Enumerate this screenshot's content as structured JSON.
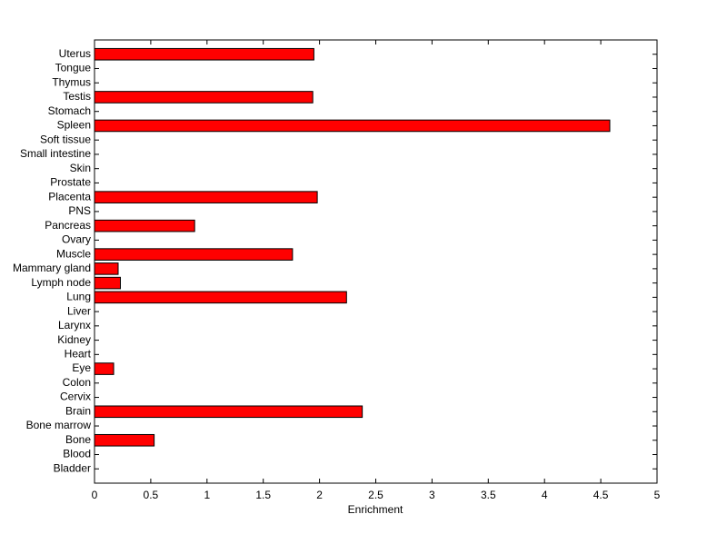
{
  "chart_data": {
    "type": "bar",
    "orientation": "horizontal",
    "xlabel": "Enrichment",
    "categories": [
      "Bladder",
      "Blood",
      "Bone",
      "Bone marrow",
      "Brain",
      "Cervix",
      "Colon",
      "Eye",
      "Heart",
      "Kidney",
      "Larynx",
      "Liver",
      "Lung",
      "Lymph node",
      "Mammary gland",
      "Muscle",
      "Ovary",
      "Pancreas",
      "PNS",
      "Placenta",
      "Prostate",
      "Skin",
      "Small intestine",
      "Soft tissue",
      "Spleen",
      "Stomach",
      "Testis",
      "Thymus",
      "Tongue",
      "Uterus"
    ],
    "values": [
      0,
      0,
      0.53,
      0,
      2.38,
      0,
      0,
      0.17,
      0,
      0,
      0,
      0,
      2.24,
      0.23,
      0.21,
      1.76,
      0,
      0.89,
      0,
      1.98,
      0,
      0,
      0,
      0,
      4.58,
      0,
      1.94,
      0,
      0,
      1.95
    ],
    "color": "#ff0000",
    "xlim": [
      0,
      5
    ],
    "xticks": [
      0,
      0.5,
      1,
      1.5,
      2,
      2.5,
      3,
      3.5,
      4,
      4.5,
      5
    ],
    "grid": false
  }
}
